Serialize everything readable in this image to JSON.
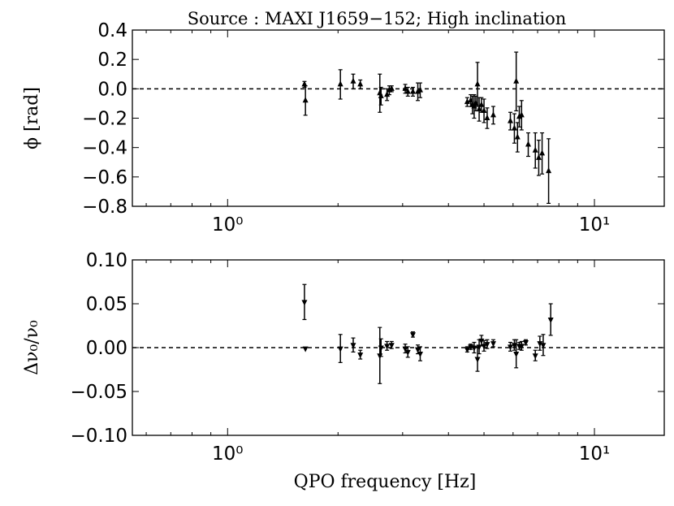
{
  "title": "Source : MAXI J1659−152; High inclination",
  "xlabel": "QPO frequency [Hz]",
  "chart_data": [
    {
      "type": "scatter",
      "panel": "top",
      "marker": "triangle-up",
      "ylabel": "ϕ [rad]",
      "xscale": "log",
      "xlim": [
        0.55,
        15.5
      ],
      "ylim": [
        -0.8,
        0.4
      ],
      "yticks": [
        "0.4",
        "0.2",
        "0.0",
        "−0.2",
        "−0.4",
        "−0.6",
        "−0.8"
      ],
      "ytick_values": [
        0.4,
        0.2,
        0.0,
        -0.2,
        -0.4,
        -0.6,
        -0.8
      ],
      "xticks": [
        "10⁰",
        "10¹"
      ],
      "xtick_values": [
        1,
        10
      ],
      "reference_line": 0,
      "points": [
        {
          "x": 1.62,
          "y": 0.03,
          "err": 0.02
        },
        {
          "x": 1.63,
          "y": -0.08,
          "err": 0.1
        },
        {
          "x": 2.03,
          "y": 0.03,
          "err": 0.1
        },
        {
          "x": 2.2,
          "y": 0.05,
          "err": 0.05
        },
        {
          "x": 2.3,
          "y": 0.03,
          "err": 0.03
        },
        {
          "x": 2.6,
          "y": -0.03,
          "err": 0.13
        },
        {
          "x": 2.62,
          "y": -0.05,
          "err": 0.06
        },
        {
          "x": 2.72,
          "y": -0.04,
          "err": 0.04
        },
        {
          "x": 2.76,
          "y": -0.01,
          "err": 0.03
        },
        {
          "x": 2.8,
          "y": 0.0,
          "err": 0.02
        },
        {
          "x": 3.05,
          "y": 0.0,
          "err": 0.03
        },
        {
          "x": 3.1,
          "y": -0.02,
          "err": 0.03
        },
        {
          "x": 3.2,
          "y": -0.02,
          "err": 0.03
        },
        {
          "x": 3.3,
          "y": -0.02,
          "err": 0.06
        },
        {
          "x": 3.35,
          "y": -0.01,
          "err": 0.05
        },
        {
          "x": 4.5,
          "y": -0.09,
          "err": 0.03
        },
        {
          "x": 4.6,
          "y": -0.08,
          "err": 0.04
        },
        {
          "x": 4.65,
          "y": -0.11,
          "err": 0.06
        },
        {
          "x": 4.7,
          "y": -0.12,
          "err": 0.08
        },
        {
          "x": 4.75,
          "y": -0.1,
          "err": 0.05
        },
        {
          "x": 4.8,
          "y": 0.03,
          "err": 0.15
        },
        {
          "x": 4.85,
          "y": -0.14,
          "err": 0.08
        },
        {
          "x": 4.92,
          "y": -0.11,
          "err": 0.05
        },
        {
          "x": 5.0,
          "y": -0.15,
          "err": 0.08
        },
        {
          "x": 5.1,
          "y": -0.2,
          "err": 0.07
        },
        {
          "x": 5.3,
          "y": -0.18,
          "err": 0.06
        },
        {
          "x": 5.9,
          "y": -0.22,
          "err": 0.06
        },
        {
          "x": 6.05,
          "y": -0.27,
          "err": 0.1
        },
        {
          "x": 6.12,
          "y": 0.05,
          "err": 0.2
        },
        {
          "x": 6.17,
          "y": -0.33,
          "err": 0.1
        },
        {
          "x": 6.24,
          "y": -0.19,
          "err": 0.07
        },
        {
          "x": 6.33,
          "y": -0.18,
          "err": 0.1
        },
        {
          "x": 6.6,
          "y": -0.38,
          "err": 0.08
        },
        {
          "x": 6.9,
          "y": -0.42,
          "err": 0.12
        },
        {
          "x": 7.05,
          "y": -0.47,
          "err": 0.12
        },
        {
          "x": 7.2,
          "y": -0.44,
          "err": 0.14
        },
        {
          "x": 7.5,
          "y": -0.56,
          "err": 0.22
        }
      ]
    },
    {
      "type": "scatter",
      "panel": "bottom",
      "marker": "triangle-down",
      "ylabel": "Δν₀/ν₀",
      "xscale": "log",
      "xlim": [
        0.55,
        15.5
      ],
      "ylim": [
        -0.1,
        0.1
      ],
      "yticks": [
        "0.10",
        "0.05",
        "0.00",
        "−0.05",
        "−0.10"
      ],
      "ytick_values": [
        0.1,
        0.05,
        0.0,
        -0.05,
        -0.1
      ],
      "xticks": [
        "10⁰",
        "10¹"
      ],
      "xtick_values": [
        1,
        10
      ],
      "reference_line": 0,
      "points": [
        {
          "x": 1.62,
          "y": 0.052,
          "err": 0.02
        },
        {
          "x": 1.63,
          "y": -0.001,
          "err": 0.0
        },
        {
          "x": 2.03,
          "y": -0.001,
          "err": 0.016
        },
        {
          "x": 2.2,
          "y": 0.003,
          "err": 0.008
        },
        {
          "x": 2.3,
          "y": -0.008,
          "err": 0.005
        },
        {
          "x": 2.6,
          "y": -0.009,
          "err": 0.032
        },
        {
          "x": 2.62,
          "y": 0.0,
          "err": 0.01
        },
        {
          "x": 2.72,
          "y": 0.002,
          "err": 0.005
        },
        {
          "x": 2.8,
          "y": 0.003,
          "err": 0.004
        },
        {
          "x": 3.05,
          "y": -0.001,
          "err": 0.005
        },
        {
          "x": 3.1,
          "y": -0.005,
          "err": 0.006
        },
        {
          "x": 3.2,
          "y": 0.015,
          "err": 0.003
        },
        {
          "x": 3.3,
          "y": -0.002,
          "err": 0.005
        },
        {
          "x": 3.35,
          "y": -0.007,
          "err": 0.008
        },
        {
          "x": 4.5,
          "y": -0.002,
          "err": 0.003
        },
        {
          "x": 4.6,
          "y": 0.001,
          "err": 0.003
        },
        {
          "x": 4.7,
          "y": 0.0,
          "err": 0.006
        },
        {
          "x": 4.8,
          "y": -0.013,
          "err": 0.014
        },
        {
          "x": 4.85,
          "y": 0.001,
          "err": 0.008
        },
        {
          "x": 4.92,
          "y": 0.008,
          "err": 0.006
        },
        {
          "x": 5.0,
          "y": 0.002,
          "err": 0.006
        },
        {
          "x": 5.1,
          "y": 0.004,
          "err": 0.005
        },
        {
          "x": 5.3,
          "y": 0.005,
          "err": 0.004
        },
        {
          "x": 5.9,
          "y": 0.001,
          "err": 0.005
        },
        {
          "x": 6.05,
          "y": 0.003,
          "err": 0.006
        },
        {
          "x": 6.12,
          "y": -0.007,
          "err": 0.016
        },
        {
          "x": 6.24,
          "y": 0.002,
          "err": 0.004
        },
        {
          "x": 6.33,
          "y": 0.002,
          "err": 0.005
        },
        {
          "x": 6.5,
          "y": 0.006,
          "err": 0.003
        },
        {
          "x": 6.9,
          "y": -0.009,
          "err": 0.006
        },
        {
          "x": 7.1,
          "y": 0.005,
          "err": 0.008
        },
        {
          "x": 7.25,
          "y": 0.003,
          "err": 0.012
        },
        {
          "x": 7.6,
          "y": 0.032,
          "err": 0.018
        }
      ]
    }
  ]
}
